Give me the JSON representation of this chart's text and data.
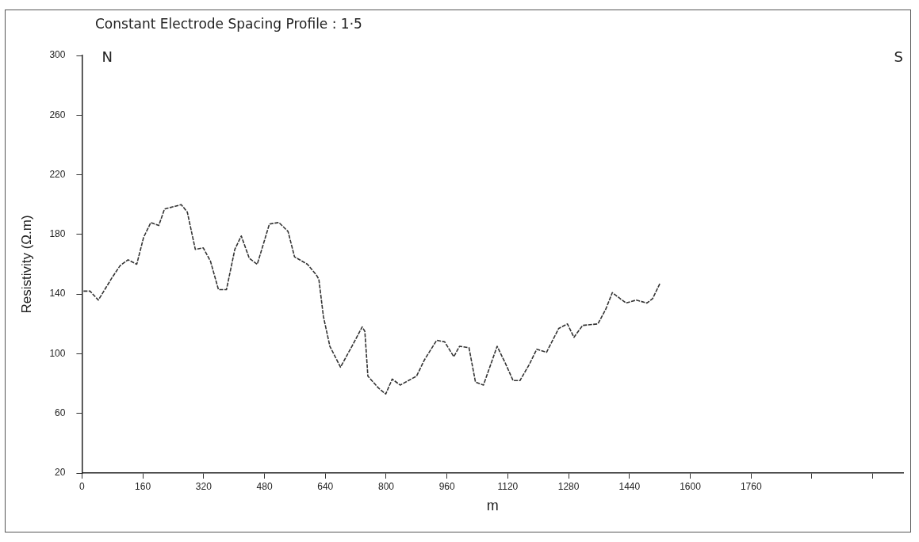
{
  "chart_data": {
    "type": "line",
    "title": "Constant Electrode Spacing Profile : 1·5",
    "xlabel": "m",
    "ylabel": "Resistivity (Ω.m)",
    "annotations": [
      "N",
      "S"
    ],
    "x": [
      4,
      21,
      43,
      79,
      100,
      121,
      144,
      162,
      181,
      202,
      217,
      261,
      277,
      298,
      319,
      338,
      359,
      380,
      402,
      419,
      440,
      461,
      493,
      518,
      542,
      559,
      593,
      616,
      623,
      635,
      652,
      680,
      710,
      737,
      744,
      752,
      780,
      799,
      816,
      837,
      880,
      901,
      933,
      954,
      978,
      993,
      1018,
      1035,
      1056,
      1092,
      1113,
      1134,
      1152,
      1177,
      1196,
      1222,
      1254,
      1277,
      1294,
      1317,
      1357,
      1378,
      1395,
      1431,
      1458,
      1486,
      1501,
      1520
    ],
    "series": [
      {
        "color": "#333333",
        "values": [
          142,
          142,
          136,
          151,
          159,
          163,
          160,
          178,
          188,
          186,
          197,
          200,
          195,
          170,
          171,
          162,
          143,
          143,
          170,
          179,
          164,
          160,
          187,
          188,
          182,
          165,
          160,
          153,
          150,
          125,
          105,
          91,
          105,
          118,
          115,
          85,
          77,
          73,
          83,
          79,
          85,
          96,
          109,
          108,
          98,
          105,
          104,
          81,
          79,
          105,
          94,
          82,
          82,
          93,
          103,
          101,
          117,
          120,
          111,
          119,
          120,
          130,
          141,
          134,
          136,
          134,
          137,
          147
        ]
      }
    ],
    "xlim": [
      0,
      2160
    ],
    "xticks": [
      0,
      160,
      320,
      480,
      640,
      800,
      960,
      1120,
      1280,
      1440,
      1600,
      1760,
      {
        "value": 1920,
        "label": null
      },
      {
        "value": 2080,
        "label": null
      }
    ],
    "ylim": [
      20,
      300
    ],
    "yticks": [
      20,
      60,
      100,
      140,
      180,
      220,
      260,
      300
    ],
    "grid": false,
    "legend": false,
    "marker": "none",
    "line_style": "dashed"
  }
}
